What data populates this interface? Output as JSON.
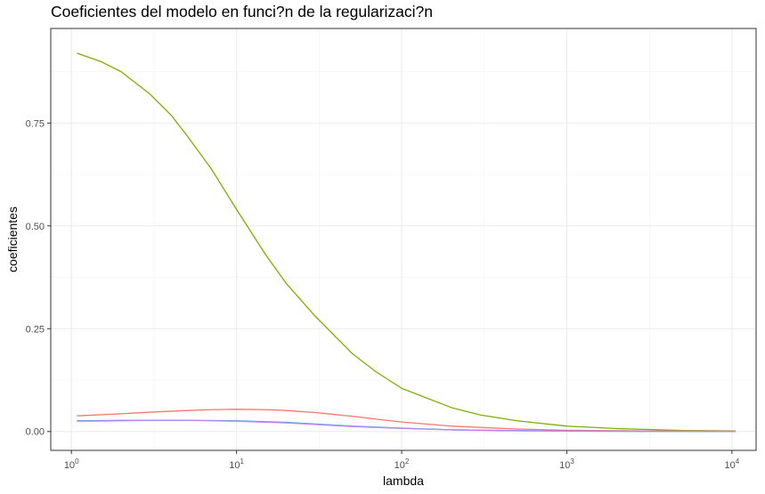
{
  "chart_data": {
    "type": "line",
    "title": "Coeficientes del modelo en funci?n de la regularizaci?n",
    "xlabel": "lambda",
    "ylabel": "coeficientes",
    "x_scale": "log10",
    "xlim": [
      0.75,
      14000
    ],
    "ylim": [
      -0.046,
      0.98
    ],
    "grid": true,
    "legend": "none",
    "x_ticks": [
      {
        "value": 1,
        "base": "10",
        "exp": "0"
      },
      {
        "value": 10,
        "base": "10",
        "exp": "1"
      },
      {
        "value": 100,
        "base": "10",
        "exp": "2"
      },
      {
        "value": 1000,
        "base": "10",
        "exp": "3"
      },
      {
        "value": 10000,
        "base": "10",
        "exp": "4"
      }
    ],
    "y_ticks": [
      {
        "value": 0.0,
        "label": "0.00"
      },
      {
        "value": 0.25,
        "label": "0.25"
      },
      {
        "value": 0.5,
        "label": "0.50"
      },
      {
        "value": 0.75,
        "label": "0.75"
      }
    ],
    "series": [
      {
        "color": "#7CAE00",
        "x": [
          1.08,
          1.5,
          2,
          3,
          4,
          5,
          7,
          10,
          15,
          20,
          30,
          50,
          70,
          100,
          200,
          300,
          500,
          1000,
          2000,
          5000,
          10500
        ],
        "y": [
          0.92,
          0.9,
          0.875,
          0.82,
          0.77,
          0.72,
          0.64,
          0.54,
          0.43,
          0.36,
          0.28,
          0.19,
          0.145,
          0.105,
          0.058,
          0.04,
          0.026,
          0.013,
          0.007,
          0.0025,
          0.0012
        ]
      },
      {
        "color": "#F8766D",
        "x": [
          1.08,
          2,
          3,
          5,
          7,
          10,
          15,
          20,
          30,
          50,
          70,
          100,
          200,
          500,
          1000,
          3000,
          10500
        ],
        "y": [
          0.038,
          0.043,
          0.047,
          0.051,
          0.053,
          0.054,
          0.053,
          0.051,
          0.046,
          0.037,
          0.03,
          0.023,
          0.013,
          0.006,
          0.003,
          0.0012,
          0.0005
        ]
      },
      {
        "color": "#00BFC4",
        "x": [
          1.08,
          2,
          3,
          5,
          10,
          20,
          30,
          50,
          100,
          200,
          500,
          1000,
          3000,
          10500
        ],
        "y": [
          0.026,
          0.027,
          0.027,
          0.027,
          0.026,
          0.022,
          0.018,
          0.013,
          0.008,
          0.004,
          0.002,
          0.001,
          0.0004,
          0.0001
        ]
      },
      {
        "color": "#C77CFF",
        "x": [
          1.08,
          2,
          3,
          5,
          10,
          20,
          30,
          50,
          100,
          200,
          500,
          1000,
          3000,
          10500
        ],
        "y": [
          0.025,
          0.026,
          0.027,
          0.027,
          0.025,
          0.021,
          0.017,
          0.012,
          0.0075,
          0.004,
          0.0018,
          0.0009,
          0.0003,
          0.0001
        ]
      }
    ]
  }
}
